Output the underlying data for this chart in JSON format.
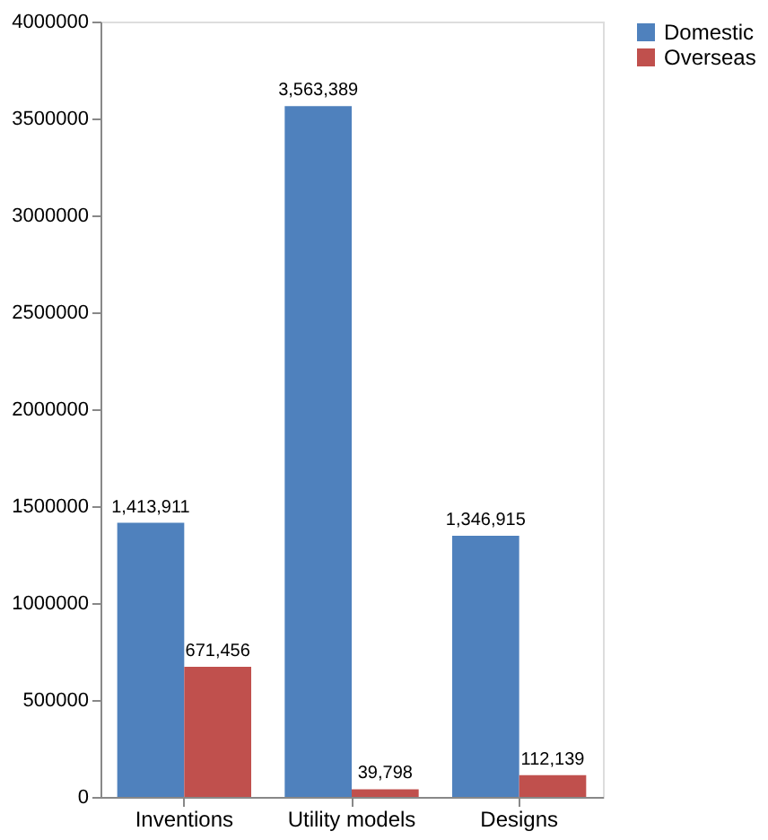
{
  "chart_data": {
    "type": "bar",
    "categories": [
      "Inventions",
      "Utility models",
      "Designs"
    ],
    "series": [
      {
        "name": "Domestic",
        "color": "#4f81bd",
        "values": [
          1413911,
          3563389,
          1346915
        ],
        "value_labels": [
          "1,413,911",
          "3,563,389",
          "1,346,915"
        ]
      },
      {
        "name": "Overseas",
        "color": "#c0504d",
        "values": [
          671456,
          39798,
          112139
        ],
        "value_labels": [
          "671,456",
          "39,798",
          "112,139"
        ]
      }
    ],
    "ylim": [
      0,
      4000000
    ],
    "yticks": [
      0,
      500000,
      1000000,
      1500000,
      2000000,
      2500000,
      3000000,
      3500000,
      4000000
    ],
    "legend": "right",
    "grid": false
  }
}
